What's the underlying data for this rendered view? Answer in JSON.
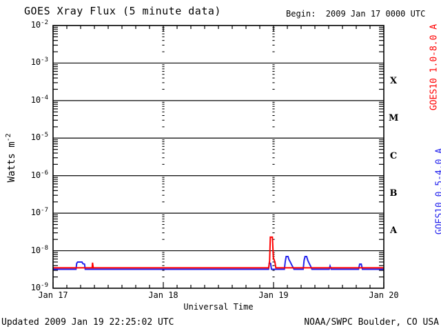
{
  "header": {
    "title": "GOES Xray Flux (5 minute data)",
    "begin_label": "Begin:  2009 Jan 17 0000 UTC"
  },
  "footer": {
    "updated": "Updated 2009 Jan 19 22:25:02 UTC",
    "source": "NOAA/SWPC Boulder, CO USA"
  },
  "colors": {
    "long_channel": "#ff0000",
    "short_channel": "#2222ee",
    "axis": "#000000",
    "background": "#ffffff"
  },
  "chart_data": {
    "type": "line",
    "title": "GOES Xray Flux (5 minute data)",
    "xlabel": "Universal Time",
    "ylabel_base": "Watts m",
    "ylabel_exponent": "-2",
    "x_range_hours": [
      0,
      72
    ],
    "x_minor_tick_hours": 3,
    "x_ticks": [
      {
        "hour": 0,
        "label": "Jan 17"
      },
      {
        "hour": 24,
        "label": "Jan 18"
      },
      {
        "hour": 48,
        "label": "Jan 19"
      },
      {
        "hour": 72,
        "label": "Jan 20"
      }
    ],
    "dotted_gridline_hours": [
      24,
      48
    ],
    "y_log_range_exponents": [
      -9,
      -2
    ],
    "y_tick_exponents": [
      -2,
      -3,
      -4,
      -5,
      -6,
      -7,
      -8,
      -9
    ],
    "grid_decade_exponents": [
      -3,
      -4,
      -5,
      -6,
      -7,
      -8
    ],
    "flux_class_labels": [
      {
        "label": "X",
        "center_exponent": -3.5
      },
      {
        "label": "M",
        "center_exponent": -4.5
      },
      {
        "label": "C",
        "center_exponent": -5.5
      },
      {
        "label": "B",
        "center_exponent": -6.5
      },
      {
        "label": "A",
        "center_exponent": -7.5
      }
    ],
    "series": [
      {
        "name": "GOES10 0.5-4.0 A",
        "color": "#2222ee",
        "points": [
          [
            0,
            3.2e-09
          ],
          [
            5.0,
            3.2e-09
          ],
          [
            5.15,
            4.6e-09
          ],
          [
            5.35,
            5e-09
          ],
          [
            6.3,
            5e-09
          ],
          [
            6.5,
            4.5e-09
          ],
          [
            6.85,
            4.4e-09
          ],
          [
            7.0,
            3.2e-09
          ],
          [
            46.9,
            3.2e-09
          ],
          [
            47.05,
            4.6e-09
          ],
          [
            47.35,
            4.6e-09
          ],
          [
            47.55,
            3.2e-09
          ],
          [
            50.35,
            3.2e-09
          ],
          [
            50.55,
            5.2e-09
          ],
          [
            50.75,
            7e-09
          ],
          [
            51.15,
            7e-09
          ],
          [
            51.35,
            5.8e-09
          ],
          [
            51.65,
            5e-09
          ],
          [
            51.95,
            4.2e-09
          ],
          [
            52.25,
            3.6e-09
          ],
          [
            52.45,
            3.2e-09
          ],
          [
            54.45,
            3.2e-09
          ],
          [
            54.65,
            5.5e-09
          ],
          [
            54.85,
            7e-09
          ],
          [
            55.2,
            7e-09
          ],
          [
            55.45,
            5.5e-09
          ],
          [
            55.75,
            4.6e-09
          ],
          [
            56.05,
            3.9e-09
          ],
          [
            56.35,
            3.2e-09
          ],
          [
            60.1,
            3.2e-09
          ],
          [
            60.3,
            3.9e-09
          ],
          [
            60.55,
            3.2e-09
          ],
          [
            66.5,
            3.2e-09
          ],
          [
            66.75,
            4.4e-09
          ],
          [
            67.1,
            4.4e-09
          ],
          [
            67.35,
            3.2e-09
          ],
          [
            72,
            3.2e-09
          ]
        ]
      },
      {
        "name": "GOES10 1.0-8.0 A",
        "color": "#ff0000",
        "points": [
          [
            0,
            3.5e-09
          ],
          [
            8.5,
            3.5e-09
          ],
          [
            8.6,
            4.8e-09
          ],
          [
            8.75,
            3.5e-09
          ],
          [
            46.95,
            3.5e-09
          ],
          [
            47.15,
            5.5e-09
          ],
          [
            47.3,
            2.3e-08
          ],
          [
            47.75,
            2.3e-08
          ],
          [
            47.95,
            6.5e-09
          ],
          [
            48.3,
            5e-09
          ],
          [
            48.5,
            3.5e-09
          ],
          [
            72,
            3.5e-09
          ]
        ]
      }
    ]
  }
}
